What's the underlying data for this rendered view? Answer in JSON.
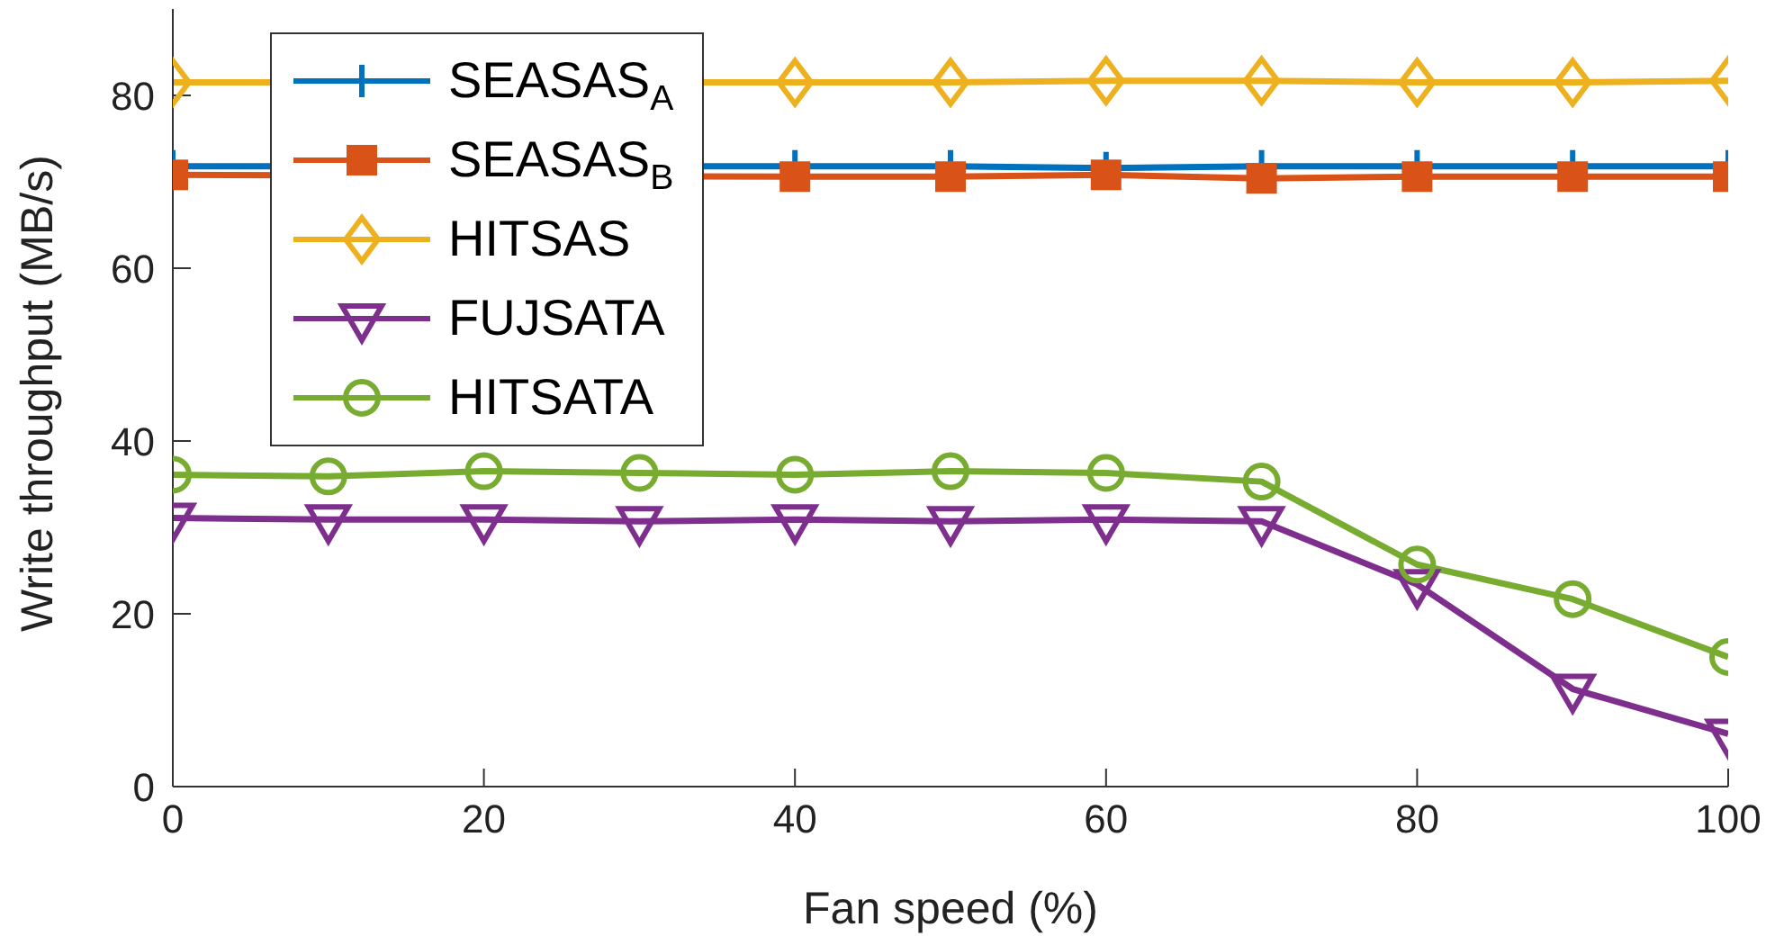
{
  "chart_data": {
    "type": "line",
    "xlabel": "Fan speed (%)",
    "ylabel": "Write throughput (MB/s)",
    "x": [
      0,
      10,
      20,
      30,
      40,
      50,
      60,
      70,
      80,
      90,
      100
    ],
    "series": [
      {
        "name": "SEASAS$_{A}$",
        "color": "#0072bd",
        "marker": "cross",
        "values": [
          71.8,
          null,
          null,
          null,
          71.8,
          71.8,
          71.6,
          71.8,
          71.8,
          71.8,
          71.8
        ]
      },
      {
        "name": "SEASAS$_{B}$",
        "color": "#d95319",
        "marker": "square",
        "values": [
          70.8,
          null,
          null,
          null,
          70.6,
          70.6,
          70.8,
          70.4,
          70.6,
          70.6,
          70.6
        ]
      },
      {
        "name": "HITSAS",
        "color": "#edb120",
        "marker": "diamond",
        "values": [
          81.5,
          null,
          null,
          null,
          81.5,
          81.5,
          81.7,
          81.7,
          81.5,
          81.5,
          81.7
        ]
      },
      {
        "name": "FUJSATA",
        "color": "#7e2f8e",
        "marker": "triangle",
        "values": [
          31.1,
          30.9,
          30.9,
          30.7,
          30.9,
          30.7,
          30.9,
          30.7,
          23.4,
          11.3,
          6.1
        ]
      },
      {
        "name": "HITSATA",
        "color": "#77ac30",
        "marker": "circle",
        "values": [
          36.1,
          35.9,
          36.5,
          36.3,
          36.1,
          36.5,
          36.3,
          35.3,
          25.7,
          21.7,
          15.0
        ]
      }
    ],
    "xlim": [
      0,
      100
    ],
    "xticks": [
      0,
      20,
      40,
      60,
      80,
      100
    ],
    "ylim": [
      0,
      90
    ],
    "yticks": [
      0,
      20,
      40,
      60,
      80
    ],
    "grid": false,
    "legend": "top left"
  }
}
